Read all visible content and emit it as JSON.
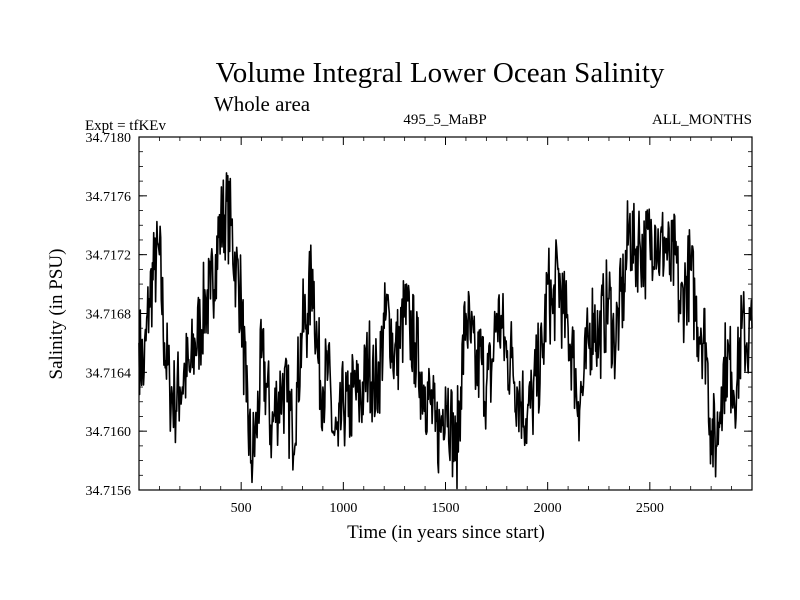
{
  "chart_data": {
    "type": "line",
    "title": "Volume Integral Lower Ocean Salinity",
    "subtitle": "Whole area",
    "annotations": {
      "left": "Expt = tfKEv",
      "center": "495_5_MaBP",
      "right": "ALL_MONTHS"
    },
    "xlabel": "Time (in years since start)",
    "ylabel": "Salinity (in PSU)",
    "xlim": [
      0,
      3000
    ],
    "ylim": [
      34.7156,
      34.718
    ],
    "xticks": [
      500,
      1000,
      1500,
      2000,
      2500
    ],
    "xtick_labels": [
      "500",
      "1000",
      "1500",
      "2000",
      "2500"
    ],
    "yticks": [
      34.7156,
      34.716,
      34.7164,
      34.7168,
      34.7172,
      34.7176,
      34.718
    ],
    "ytick_labels": [
      "34.7156",
      "34.7160",
      "34.7164",
      "34.7168",
      "34.7172",
      "34.7176",
      "34.7180"
    ],
    "grid": false,
    "line_color": "#000000",
    "series": [
      {
        "x": [
          0,
          25,
          50,
          75,
          100,
          125,
          150,
          175,
          200,
          225,
          250,
          275,
          300,
          325,
          350,
          375,
          400,
          425,
          450,
          475,
          500,
          525,
          550,
          575,
          600,
          625,
          650,
          675,
          700,
          725,
          750,
          775,
          800,
          825,
          850,
          875,
          900,
          925,
          950,
          975,
          1000,
          1025,
          1050,
          1075,
          1100,
          1125,
          1150,
          1175,
          1200,
          1225,
          1250,
          1275,
          1300,
          1325,
          1350,
          1375,
          1400,
          1425,
          1450,
          1475,
          1500,
          1525,
          1550,
          1575,
          1600,
          1625,
          1650,
          1675,
          1700,
          1725,
          1750,
          1775,
          1800,
          1825,
          1850,
          1875,
          1900,
          1925,
          1950,
          1975,
          2000,
          2025,
          2050,
          2075,
          2100,
          2125,
          2150,
          2175,
          2200,
          2225,
          2250,
          2275,
          2300,
          2325,
          2350,
          2375,
          2400,
          2425,
          2450,
          2475,
          2500,
          2525,
          2550,
          2575,
          2600,
          2625,
          2650,
          2675,
          2700,
          2725,
          2750,
          2775,
          2800,
          2825,
          2850,
          2875,
          2900,
          2925,
          2950,
          2975,
          3000
        ],
        "values": [
          34.7166,
          34.7164,
          34.7169,
          34.7171,
          34.7172,
          34.7166,
          34.7163,
          34.7162,
          34.7163,
          34.7164,
          34.7164,
          34.7166,
          34.7167,
          34.7169,
          34.7169,
          34.7172,
          34.7174,
          34.7175,
          34.7174,
          34.7171,
          34.7169,
          34.7162,
          34.7158,
          34.716,
          34.7165,
          34.7163,
          34.716,
          34.7162,
          34.7163,
          34.7162,
          34.716,
          34.7163,
          34.7167,
          34.7168,
          34.7171,
          34.7165,
          34.7163,
          34.7164,
          34.716,
          34.7159,
          34.7162,
          34.7161,
          34.7163,
          34.7162,
          34.7163,
          34.7165,
          34.7163,
          34.7164,
          34.7167,
          34.7168,
          34.7165,
          34.7166,
          34.7168,
          34.7167,
          34.7166,
          34.7164,
          34.7163,
          34.7162,
          34.716,
          34.716,
          34.7163,
          34.7161,
          34.7158,
          34.7163,
          34.7168,
          34.7166,
          34.7164,
          34.7165,
          34.7163,
          34.7164,
          34.7168,
          34.7167,
          34.7165,
          34.7165,
          34.7163,
          34.7162,
          34.7161,
          34.7162,
          34.7164,
          34.7165,
          34.717,
          34.7168,
          34.7171,
          34.7168,
          34.7167,
          34.7165,
          34.7162,
          34.7163,
          34.7166,
          34.7168,
          34.7166,
          34.7168,
          34.7169,
          34.7166,
          34.7168,
          34.717,
          34.7174,
          34.7172,
          34.7173,
          34.7172,
          34.7173,
          34.7174,
          34.7172,
          34.7173,
          34.7171,
          34.7172,
          34.7168,
          34.717,
          34.7171,
          34.7168,
          34.7167,
          34.7166,
          34.716,
          34.7159,
          34.7163,
          34.7165,
          34.7164,
          34.7163,
          34.7167,
          34.7166,
          34.7167
        ]
      }
    ]
  }
}
